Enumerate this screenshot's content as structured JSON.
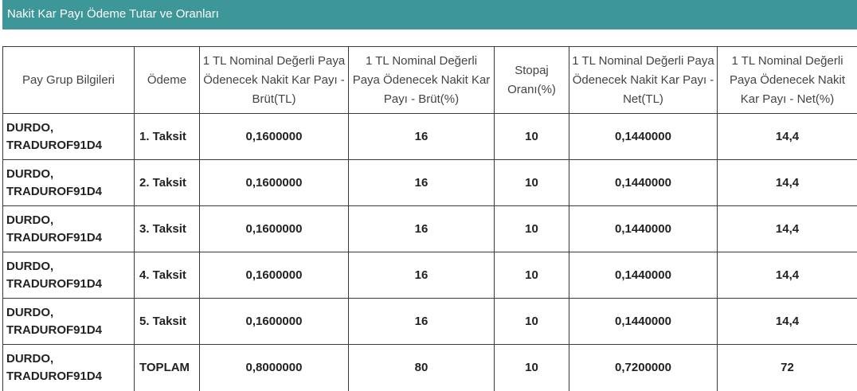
{
  "title": "Nakit Kar Payı Ödeme Tutar ve Oranları",
  "columns": [
    "Pay Grup Bilgileri",
    "Ödeme",
    "1 TL Nominal Değerli Paya Ödenecek Nakit Kar Payı - Brüt(TL)",
    "1 TL Nominal Değerli Paya Ödenecek Nakit Kar Payı - Brüt(%)",
    "Stopaj Oranı(%)",
    "1 TL Nominal Değerli Paya Ödenecek Nakit Kar Payı - Net(TL)",
    "1 TL Nominal Değerli Paya Ödenecek Nakit Kar Payı - Net(%)"
  ],
  "rows": [
    {
      "group_line1": "DURDO,",
      "group_line2": "TRADUROF91D4",
      "payment": "1. Taksit",
      "gross_tl": "0,1600000",
      "gross_pct": "16",
      "withholding": "10",
      "net_tl": "0,1440000",
      "net_pct": "14,4"
    },
    {
      "group_line1": "DURDO,",
      "group_line2": "TRADUROF91D4",
      "payment": "2. Taksit",
      "gross_tl": "0,1600000",
      "gross_pct": "16",
      "withholding": "10",
      "net_tl": "0,1440000",
      "net_pct": "14,4"
    },
    {
      "group_line1": "DURDO,",
      "group_line2": "TRADUROF91D4",
      "payment": "3. Taksit",
      "gross_tl": "0,1600000",
      "gross_pct": "16",
      "withholding": "10",
      "net_tl": "0,1440000",
      "net_pct": "14,4"
    },
    {
      "group_line1": "DURDO,",
      "group_line2": "TRADUROF91D4",
      "payment": "4. Taksit",
      "gross_tl": "0,1600000",
      "gross_pct": "16",
      "withholding": "10",
      "net_tl": "0,1440000",
      "net_pct": "14,4"
    },
    {
      "group_line1": "DURDO,",
      "group_line2": "TRADUROF91D4",
      "payment": "5. Taksit",
      "gross_tl": "0,1600000",
      "gross_pct": "16",
      "withholding": "10",
      "net_tl": "0,1440000",
      "net_pct": "14,4"
    },
    {
      "group_line1": "DURDO,",
      "group_line2": "TRADUROF91D4",
      "payment": "TOPLAM",
      "gross_tl": "0,8000000",
      "gross_pct": "80",
      "withholding": "10",
      "net_tl": "0,7200000",
      "net_pct": "72"
    }
  ],
  "colors": {
    "header_bar": "#3d9799",
    "header_text": "#ffffff",
    "border": "#3a3a3a"
  }
}
